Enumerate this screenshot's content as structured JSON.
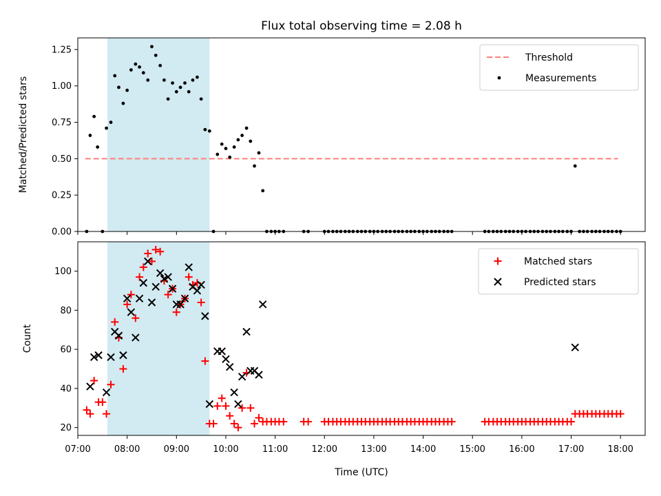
{
  "chart_data": {
    "title": "Flux total observing time = 2.08 h",
    "xlabel": "Time (UTC)",
    "xlim": [
      7.0,
      18.5
    ],
    "xticks": [
      "07:00",
      "08:00",
      "09:00",
      "10:00",
      "11:00",
      "12:00",
      "13:00",
      "14:00",
      "15:00",
      "16:00",
      "17:00",
      "18:00"
    ],
    "highlight_interval": {
      "start": 7.6,
      "end": 9.67,
      "color": "#add8e6"
    },
    "panels": [
      {
        "type": "scatter",
        "ylabel": "Matched/Predicted stars",
        "ylim": [
          0,
          1.33
        ],
        "yticks": [
          0.0,
          0.25,
          0.5,
          0.75,
          1.0,
          1.25
        ],
        "ytick_labels": [
          "0.00",
          "0.25",
          "0.50",
          "0.75",
          "1.00",
          "1.25"
        ],
        "legend_position": "upper right",
        "threshold": {
          "name": "Threshold",
          "value": 0.5,
          "x": [
            7.15,
            17.95
          ],
          "color": "#ff7f7f"
        },
        "series": [
          {
            "name": "Measurements",
            "marker": "dot",
            "color": "#000000",
            "x": [
              7.18,
              7.25,
              7.33,
              7.4,
              7.5,
              7.58,
              7.67,
              7.75,
              7.83,
              7.92,
              8.0,
              8.08,
              8.17,
              8.25,
              8.33,
              8.42,
              8.5,
              8.58,
              8.67,
              8.75,
              8.83,
              8.92,
              9.0,
              9.08,
              9.17,
              9.25,
              9.33,
              9.42,
              9.5,
              9.58,
              9.67,
              9.75,
              9.83,
              9.92,
              10.0,
              10.08,
              10.17,
              10.25,
              10.33,
              10.42,
              10.5,
              10.58,
              10.67,
              10.75,
              10.83,
              10.92,
              11.0,
              11.08,
              11.17,
              11.58,
              11.67,
              12.0,
              12.08,
              12.17,
              12.25,
              12.33,
              12.42,
              12.5,
              12.58,
              12.67,
              12.75,
              12.83,
              12.92,
              13.0,
              13.08,
              13.17,
              13.25,
              13.33,
              13.42,
              13.5,
              13.58,
              13.67,
              13.75,
              13.83,
              13.92,
              14.0,
              14.08,
              14.17,
              14.25,
              14.33,
              14.42,
              14.5,
              14.58,
              15.25,
              15.33,
              15.42,
              15.5,
              15.58,
              15.67,
              15.75,
              15.83,
              15.92,
              16.0,
              16.08,
              16.17,
              16.25,
              16.33,
              16.42,
              16.5,
              16.58,
              16.67,
              16.75,
              16.83,
              16.92,
              17.0,
              17.08,
              17.17,
              17.25,
              17.33,
              17.42,
              17.5,
              17.58,
              17.67,
              17.75,
              17.83,
              17.92,
              18.0
            ],
            "y": [
              0.0,
              0.66,
              0.79,
              0.58,
              0.0,
              0.71,
              0.75,
              1.07,
              0.99,
              0.88,
              0.97,
              1.11,
              1.15,
              1.13,
              1.09,
              1.04,
              1.27,
              1.21,
              1.14,
              1.04,
              0.91,
              1.02,
              0.96,
              0.99,
              1.02,
              0.96,
              1.04,
              1.06,
              0.91,
              0.7,
              0.69,
              0.0,
              0.53,
              0.6,
              0.57,
              0.51,
              0.58,
              0.63,
              0.66,
              0.71,
              0.62,
              0.45,
              0.54,
              0.28,
              0.0,
              0.0,
              0.0,
              0.0,
              0.0,
              0.0,
              0.0,
              0.0,
              0.0,
              0.0,
              0.0,
              0.0,
              0.0,
              0.0,
              0.0,
              0.0,
              0.0,
              0.0,
              0.0,
              0.0,
              0.0,
              0.0,
              0.0,
              0.0,
              0.0,
              0.0,
              0.0,
              0.0,
              0.0,
              0.0,
              0.0,
              0.0,
              0.0,
              0.0,
              0.0,
              0.0,
              0.0,
              0.0,
              0.0,
              0.0,
              0.0,
              0.0,
              0.0,
              0.0,
              0.0,
              0.0,
              0.0,
              0.0,
              0.0,
              0.0,
              0.0,
              0.0,
              0.0,
              0.0,
              0.0,
              0.0,
              0.0,
              0.0,
              0.0,
              0.0,
              0.0,
              0.45,
              0.0,
              0.0,
              0.0,
              0.0,
              0.0,
              0.0,
              0.0,
              0.0,
              0.0,
              0.0,
              0.0
            ]
          }
        ]
      },
      {
        "type": "scatter",
        "ylabel": "Count",
        "ylim": [
          16,
          115
        ],
        "yticks": [
          20,
          40,
          60,
          80,
          100
        ],
        "ytick_labels": [
          "20",
          "40",
          "60",
          "80",
          "100"
        ],
        "legend_position": "upper right",
        "series": [
          {
            "name": "Matched stars",
            "marker": "plus",
            "color": "#ff0000",
            "x": [
              7.18,
              7.25,
              7.33,
              7.42,
              7.5,
              7.58,
              7.67,
              7.75,
              7.83,
              7.92,
              8.0,
              8.08,
              8.17,
              8.25,
              8.33,
              8.42,
              8.5,
              8.58,
              8.67,
              8.75,
              8.83,
              8.92,
              9.0,
              9.08,
              9.17,
              9.25,
              9.33,
              9.42,
              9.5,
              9.58,
              9.67,
              9.75,
              9.83,
              9.92,
              10.0,
              10.08,
              10.17,
              10.25,
              10.33,
              10.42,
              10.5,
              10.58,
              10.67,
              10.75,
              10.83,
              10.92,
              11.0,
              11.08,
              11.17,
              11.58,
              11.67,
              12.0,
              12.08,
              12.17,
              12.25,
              12.33,
              12.42,
              12.5,
              12.58,
              12.67,
              12.75,
              12.83,
              12.92,
              13.0,
              13.08,
              13.17,
              13.25,
              13.33,
              13.42,
              13.5,
              13.58,
              13.67,
              13.75,
              13.83,
              13.92,
              14.0,
              14.08,
              14.17,
              14.25,
              14.33,
              14.42,
              14.5,
              14.58,
              15.25,
              15.33,
              15.42,
              15.5,
              15.58,
              15.67,
              15.75,
              15.83,
              15.92,
              16.0,
              16.08,
              16.17,
              16.25,
              16.33,
              16.42,
              16.5,
              16.58,
              16.67,
              16.75,
              16.83,
              16.92,
              17.0,
              17.08,
              17.17,
              17.25,
              17.33,
              17.42,
              17.5,
              17.58,
              17.67,
              17.75,
              17.83,
              17.92,
              18.0
            ],
            "y": [
              29,
              27,
              44,
              33,
              33,
              27,
              42,
              74,
              66,
              50,
              83,
              88,
              76,
              97,
              102,
              109,
              105,
              111,
              110,
              95,
              88,
              91,
              79,
              83,
              86,
              97,
              93,
              94,
              84,
              54,
              22,
              22,
              31,
              35,
              31,
              26,
              22,
              20,
              30,
              48,
              30,
              22,
              25,
              23,
              23,
              23,
              23,
              23,
              23,
              23,
              23,
              23,
              23,
              23,
              23,
              23,
              23,
              23,
              23,
              23,
              23,
              23,
              23,
              23,
              23,
              23,
              23,
              23,
              23,
              23,
              23,
              23,
              23,
              23,
              23,
              23,
              23,
              23,
              23,
              23,
              23,
              23,
              23,
              23,
              23,
              23,
              23,
              23,
              23,
              23,
              23,
              23,
              23,
              23,
              23,
              23,
              23,
              23,
              23,
              23,
              23,
              23,
              23,
              23,
              23,
              27,
              27,
              27,
              27,
              27,
              27,
              27,
              27,
              27,
              27,
              27,
              27
            ]
          },
          {
            "name": "Predicted stars",
            "marker": "x",
            "color": "#000000",
            "x": [
              7.25,
              7.33,
              7.42,
              7.58,
              7.67,
              7.75,
              7.83,
              7.92,
              8.0,
              8.08,
              8.17,
              8.25,
              8.33,
              8.42,
              8.5,
              8.58,
              8.67,
              8.75,
              8.83,
              8.92,
              9.0,
              9.08,
              9.17,
              9.25,
              9.33,
              9.42,
              9.5,
              9.58,
              9.67,
              9.83,
              9.92,
              10.0,
              10.08,
              10.17,
              10.25,
              10.33,
              10.42,
              10.5,
              10.58,
              10.67,
              10.75,
              17.08
            ],
            "y": [
              41,
              56,
              57,
              38,
              56,
              69,
              67,
              57,
              86,
              79,
              66,
              86,
              94,
              105,
              84,
              92,
              99,
              96,
              97,
              91,
              83,
              83,
              86,
              102,
              92,
              90,
              93,
              77,
              32,
              59,
              59,
              55,
              51,
              38,
              32,
              46,
              69,
              49,
              49,
              47,
              83,
              61
            ]
          }
        ]
      }
    ]
  }
}
